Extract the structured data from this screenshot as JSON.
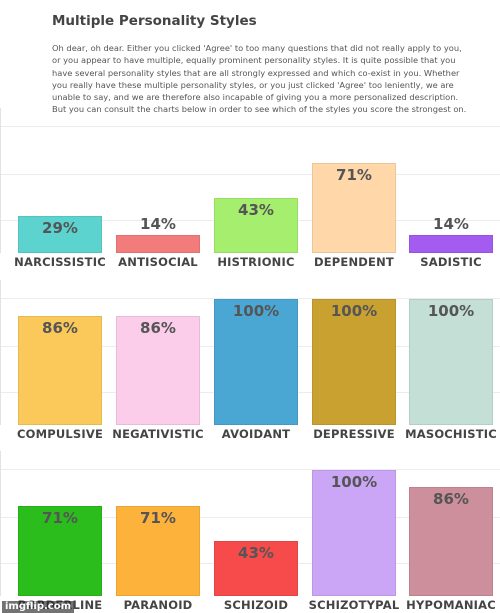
{
  "header": {
    "title": "Multiple Personality Styles",
    "description": "Oh dear, oh dear. Either you clicked 'Agree' to too many questions that did not really apply to you, or you appear to have multiple, equally prominent personality styles. It is quite possible that you have several personality styles that are all strongly expressed and which co-exist in you. Whether you really have these multiple personality styles, or you just clicked 'Agree' too leniently, we are unable to say, and we are therefore also incapable of giving you a more personalized description. But you can consult the charts below in order to see which of the styles you score the strongest on."
  },
  "chart_data": [
    {
      "type": "bar",
      "categories": [
        "NARCISSISTIC",
        "ANTISOCIAL",
        "HISTRIONIC",
        "DEPENDENT",
        "SADISTIC"
      ],
      "values": [
        29,
        14,
        43,
        71,
        14
      ],
      "value_labels": [
        "29%",
        "14%",
        "43%",
        "71%",
        "14%"
      ],
      "colors": [
        "#5cd3cf",
        "#f27b7b",
        "#a6ef6e",
        "#ffd7a8",
        "#a45bf0"
      ],
      "ylim": [
        0,
        100
      ]
    },
    {
      "type": "bar",
      "categories": [
        "COMPULSIVE",
        "NEGATIVISTIC",
        "AVOIDANT",
        "DEPRESSIVE",
        "MASOCHISTIC"
      ],
      "values": [
        86,
        86,
        100,
        100,
        100
      ],
      "value_labels": [
        "86%",
        "86%",
        "100%",
        "100%",
        "100%"
      ],
      "colors": [
        "#fbc95a",
        "#fccdea",
        "#4aa7d4",
        "#c9a131",
        "#c4dfd6"
      ],
      "ylim": [
        0,
        100
      ]
    },
    {
      "type": "bar",
      "categories": [
        "BORDERLINE",
        "PARANOID",
        "SCHIZOID",
        "SCHIZOTYPAL",
        "HYPOMANIAC"
      ],
      "values": [
        71,
        71,
        43,
        100,
        86
      ],
      "value_labels": [
        "71%",
        "71%",
        "43%",
        "100%",
        "86%"
      ],
      "colors": [
        "#2bbd1c",
        "#fdb23c",
        "#f74a4a",
        "#cba6f7",
        "#cc8f9b"
      ],
      "ylim": [
        0,
        100
      ]
    }
  ],
  "watermark": "imgflip.com"
}
